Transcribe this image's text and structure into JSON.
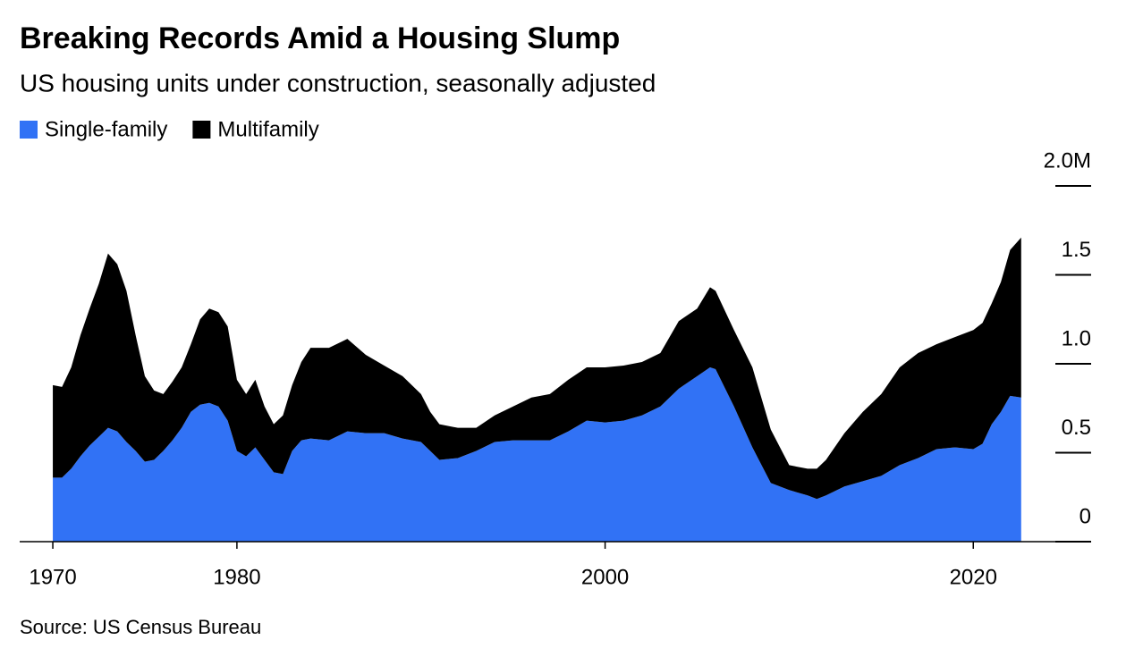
{
  "chart_data": {
    "type": "area",
    "stacked": true,
    "title": "Breaking Records Amid a Housing Slump",
    "subtitle": "US housing units under construction, seasonally adjusted",
    "source": "Source: US Census Bureau",
    "x": [
      1970,
      1970.5,
      1971,
      1971.5,
      1972,
      1972.5,
      1973,
      1973.5,
      1974,
      1974.5,
      1975,
      1975.5,
      1976,
      1976.5,
      1977,
      1977.5,
      1978,
      1978.5,
      1979,
      1979.5,
      1980,
      1980.5,
      1981,
      1981.5,
      1982,
      1982.5,
      1983,
      1983.5,
      1984,
      1985,
      1986,
      1987,
      1988,
      1989,
      1990,
      1990.5,
      1991,
      1992,
      1993,
      1994,
      1995,
      1996,
      1997,
      1998,
      1999,
      2000,
      2001,
      2002,
      2003,
      2004,
      2005,
      2005.7,
      2006,
      2007,
      2008,
      2009,
      2010,
      2011,
      2011.5,
      2012,
      2013,
      2014,
      2015,
      2016,
      2017,
      2018,
      2019,
      2020,
      2020.5,
      2021,
      2021.5,
      2022,
      2022.6
    ],
    "series": [
      {
        "name": "Single-family",
        "color": "#3172f5",
        "values": [
          0.36,
          0.36,
          0.41,
          0.48,
          0.54,
          0.59,
          0.64,
          0.62,
          0.56,
          0.51,
          0.45,
          0.46,
          0.51,
          0.57,
          0.64,
          0.73,
          0.77,
          0.78,
          0.76,
          0.68,
          0.51,
          0.48,
          0.53,
          0.46,
          0.39,
          0.38,
          0.51,
          0.57,
          0.58,
          0.57,
          0.62,
          0.61,
          0.61,
          0.58,
          0.56,
          0.51,
          0.46,
          0.47,
          0.51,
          0.56,
          0.57,
          0.57,
          0.57,
          0.62,
          0.68,
          0.67,
          0.68,
          0.71,
          0.76,
          0.86,
          0.93,
          0.98,
          0.97,
          0.76,
          0.53,
          0.33,
          0.29,
          0.26,
          0.24,
          0.26,
          0.31,
          0.34,
          0.37,
          0.43,
          0.47,
          0.52,
          0.53,
          0.52,
          0.55,
          0.66,
          0.73,
          0.82,
          0.81
        ]
      },
      {
        "name": "Multifamily",
        "color": "#000000",
        "values": [
          0.52,
          0.51,
          0.57,
          0.68,
          0.77,
          0.86,
          0.98,
          0.94,
          0.85,
          0.65,
          0.48,
          0.39,
          0.32,
          0.33,
          0.34,
          0.38,
          0.48,
          0.53,
          0.53,
          0.53,
          0.4,
          0.35,
          0.38,
          0.3,
          0.27,
          0.33,
          0.37,
          0.44,
          0.51,
          0.52,
          0.52,
          0.44,
          0.38,
          0.35,
          0.27,
          0.22,
          0.2,
          0.17,
          0.13,
          0.15,
          0.19,
          0.24,
          0.26,
          0.29,
          0.3,
          0.31,
          0.31,
          0.3,
          0.3,
          0.38,
          0.38,
          0.45,
          0.44,
          0.43,
          0.45,
          0.3,
          0.14,
          0.15,
          0.17,
          0.2,
          0.3,
          0.39,
          0.46,
          0.55,
          0.59,
          0.59,
          0.62,
          0.67,
          0.68,
          0.68,
          0.73,
          0.82,
          0.9
        ]
      }
    ],
    "xlim": [
      1968.2,
      2026.4
    ],
    "xticks": [
      1970,
      1980,
      2000,
      2020
    ],
    "ylim": [
      0,
      2
    ],
    "yticks": [
      0,
      0.5,
      {
        "value": 1,
        "label": "1.0"
      },
      1.5,
      {
        "value": 2,
        "label": "2.0M"
      }
    ]
  }
}
